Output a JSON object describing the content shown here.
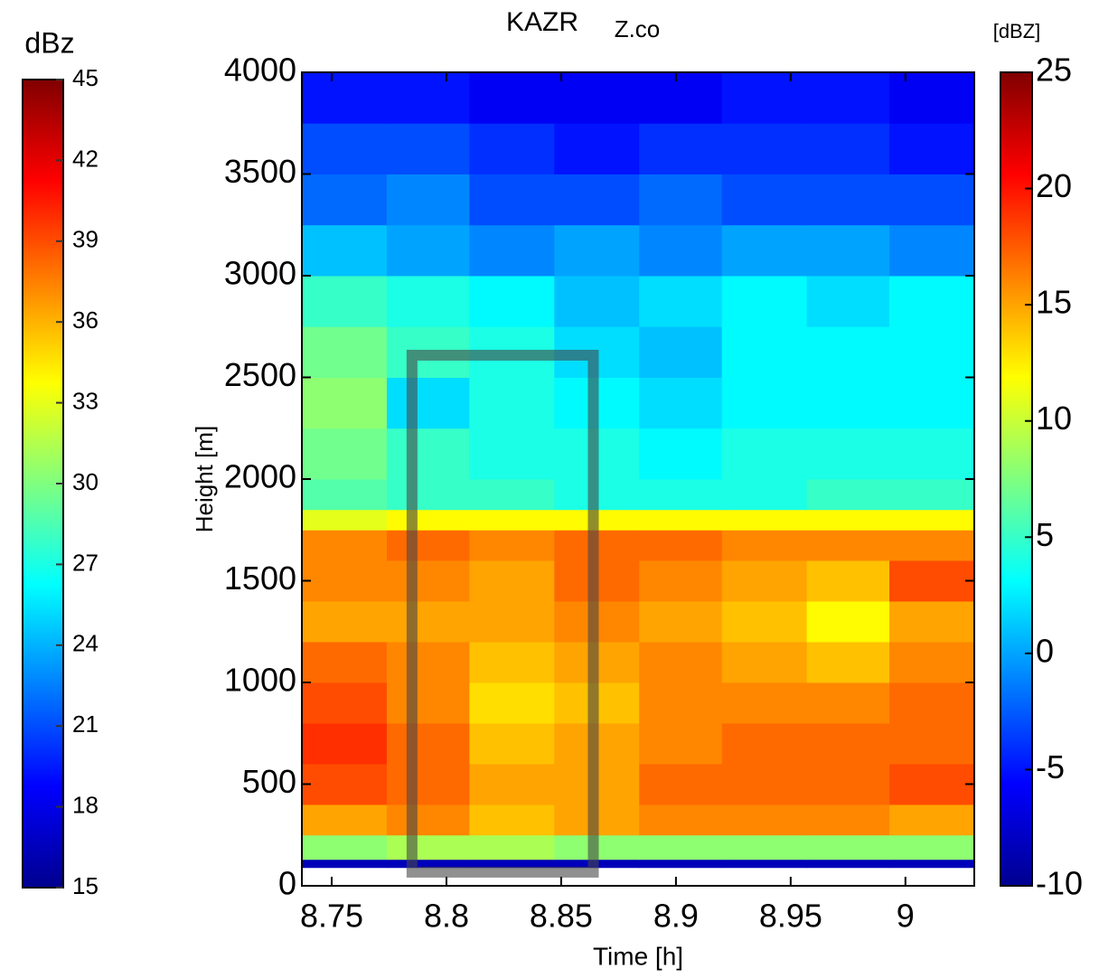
{
  "chart_data": {
    "type": "heatmap",
    "title": "KAZR",
    "subtitle": "Z.co",
    "xlabel": "Time [h]",
    "ylabel": "Height [m]",
    "xlim": [
      8.737,
      9.03
    ],
    "xticks": [
      8.75,
      8.8,
      8.85,
      8.9,
      8.95,
      9
    ],
    "ylim": [
      0,
      4000
    ],
    "yticks": [
      0,
      500,
      1000,
      1500,
      2000,
      2500,
      3000,
      3500,
      4000
    ],
    "colormap": "jet",
    "colorbar_label": "[dBZ]",
    "clim": [
      -10,
      25
    ],
    "cticks": [
      -10,
      -5,
      0,
      5,
      10,
      15,
      20,
      25
    ],
    "side_colorbar_label": "dBz",
    "side_clim": [
      15,
      45
    ],
    "side_cticks": [
      15,
      18,
      21,
      24,
      27,
      30,
      33,
      36,
      39,
      42,
      45
    ],
    "x_edges": [
      8.737,
      8.774,
      8.81,
      8.847,
      8.884,
      8.92,
      8.957,
      8.993,
      9.03
    ],
    "y_edges": [
      90,
      130,
      250,
      400,
      600,
      800,
      1000,
      1200,
      1400,
      1600,
      1750,
      1850,
      2000,
      2250,
      2500,
      2750,
      3000,
      3250,
      3500,
      3750,
      4000
    ],
    "z": [
      [
        -8,
        -8,
        -8,
        -8,
        -8,
        -8,
        -8,
        -8
      ],
      [
        8,
        9,
        9,
        8,
        8,
        8,
        8,
        8
      ],
      [
        15,
        16,
        14,
        15,
        16,
        16,
        16,
        15
      ],
      [
        18,
        17,
        15,
        15,
        17,
        17,
        17,
        18
      ],
      [
        19,
        17,
        14,
        15,
        16,
        17,
        17,
        17
      ],
      [
        18,
        16,
        13,
        14,
        16,
        16,
        16,
        17
      ],
      [
        17,
        16,
        14,
        15,
        16,
        15,
        14,
        16
      ],
      [
        15,
        15,
        15,
        16,
        15,
        14,
        12,
        15
      ],
      [
        16,
        16,
        15,
        17,
        16,
        15,
        14,
        18
      ],
      [
        16,
        17,
        16,
        17,
        17,
        16,
        16,
        16
      ],
      [
        11,
        12,
        12,
        12,
        12,
        12,
        12,
        12
      ],
      [
        6,
        5,
        5,
        4,
        4,
        4,
        5,
        5
      ],
      [
        7,
        5,
        4,
        4,
        3,
        4,
        4,
        4
      ],
      [
        8,
        2,
        4,
        3,
        2,
        3,
        3,
        3
      ],
      [
        7,
        5,
        4,
        2,
        1,
        3,
        3,
        3
      ],
      [
        5,
        4,
        3,
        1,
        2,
        3,
        2,
        3
      ],
      [
        1,
        0,
        -1,
        0,
        -1,
        0,
        0,
        -1
      ],
      [
        -2,
        -1,
        -3,
        -3,
        -2,
        -3,
        -3,
        -3
      ],
      [
        -3,
        -3,
        -4,
        -5,
        -4,
        -4,
        -4,
        -5
      ],
      [
        -5,
        -5,
        -6,
        -6,
        -6,
        -5,
        -5,
        -6
      ]
    ],
    "highlight": {
      "x": [
        8.785,
        8.864
      ],
      "y": [
        67,
        2609
      ]
    }
  }
}
